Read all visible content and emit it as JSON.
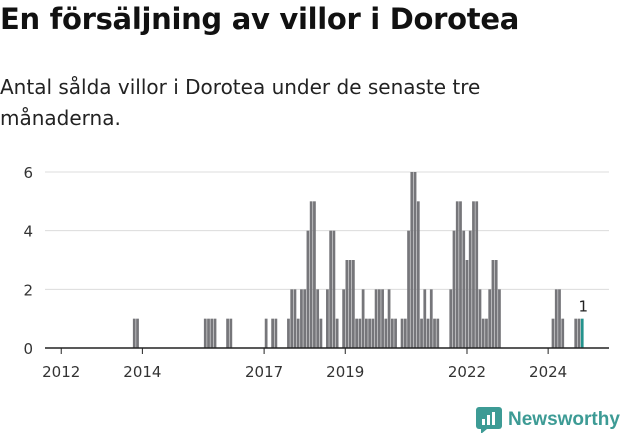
{
  "title": "En försäljning av villor i Dorotea",
  "subtitle": "Antal sålda villor i Dorotea under de senaste tre månaderna.",
  "brand": {
    "name": "Newsworthy",
    "color": "#3d9b95"
  },
  "chart_data": {
    "type": "bar",
    "title": "",
    "xlabel": "",
    "ylabel": "",
    "ylim": [
      0,
      6
    ],
    "yticks": [
      0,
      2,
      4,
      6
    ],
    "xlim": [
      2011.6,
      2025.5
    ],
    "xticks": [
      "2012",
      "2014",
      "2017",
      "2019",
      "2022",
      "2024"
    ],
    "grid": true,
    "bar_color": "#76767a",
    "highlight_color": "#24938d",
    "highlight_label": "1",
    "bars": [
      {
        "x": 2013.8,
        "y": 1
      },
      {
        "x": 2013.88,
        "y": 1
      },
      {
        "x": 2015.55,
        "y": 1
      },
      {
        "x": 2015.63,
        "y": 1
      },
      {
        "x": 2015.71,
        "y": 1
      },
      {
        "x": 2015.79,
        "y": 1
      },
      {
        "x": 2016.1,
        "y": 1
      },
      {
        "x": 2016.18,
        "y": 1
      },
      {
        "x": 2017.05,
        "y": 1
      },
      {
        "x": 2017.21,
        "y": 1
      },
      {
        "x": 2017.29,
        "y": 1
      },
      {
        "x": 2017.6,
        "y": 1
      },
      {
        "x": 2017.68,
        "y": 2
      },
      {
        "x": 2017.76,
        "y": 2
      },
      {
        "x": 2017.84,
        "y": 1
      },
      {
        "x": 2017.92,
        "y": 2
      },
      {
        "x": 2018.0,
        "y": 2
      },
      {
        "x": 2018.08,
        "y": 4
      },
      {
        "x": 2018.16,
        "y": 5
      },
      {
        "x": 2018.24,
        "y": 5
      },
      {
        "x": 2018.32,
        "y": 2
      },
      {
        "x": 2018.4,
        "y": 1
      },
      {
        "x": 2018.56,
        "y": 2
      },
      {
        "x": 2018.64,
        "y": 4
      },
      {
        "x": 2018.72,
        "y": 4
      },
      {
        "x": 2018.8,
        "y": 1
      },
      {
        "x": 2018.96,
        "y": 2
      },
      {
        "x": 2019.04,
        "y": 3
      },
      {
        "x": 2019.12,
        "y": 3
      },
      {
        "x": 2019.2,
        "y": 3
      },
      {
        "x": 2019.28,
        "y": 1
      },
      {
        "x": 2019.36,
        "y": 1
      },
      {
        "x": 2019.44,
        "y": 2
      },
      {
        "x": 2019.52,
        "y": 1
      },
      {
        "x": 2019.6,
        "y": 1
      },
      {
        "x": 2019.68,
        "y": 1
      },
      {
        "x": 2019.76,
        "y": 2
      },
      {
        "x": 2019.84,
        "y": 2
      },
      {
        "x": 2019.92,
        "y": 2
      },
      {
        "x": 2020.0,
        "y": 1
      },
      {
        "x": 2020.08,
        "y": 2
      },
      {
        "x": 2020.16,
        "y": 1
      },
      {
        "x": 2020.24,
        "y": 1
      },
      {
        "x": 2020.4,
        "y": 1
      },
      {
        "x": 2020.48,
        "y": 1
      },
      {
        "x": 2020.56,
        "y": 4
      },
      {
        "x": 2020.64,
        "y": 6
      },
      {
        "x": 2020.72,
        "y": 6
      },
      {
        "x": 2020.8,
        "y": 5
      },
      {
        "x": 2020.88,
        "y": 1
      },
      {
        "x": 2020.96,
        "y": 2
      },
      {
        "x": 2021.04,
        "y": 1
      },
      {
        "x": 2021.12,
        "y": 2
      },
      {
        "x": 2021.2,
        "y": 1
      },
      {
        "x": 2021.28,
        "y": 1
      },
      {
        "x": 2021.6,
        "y": 2
      },
      {
        "x": 2021.68,
        "y": 4
      },
      {
        "x": 2021.76,
        "y": 5
      },
      {
        "x": 2021.84,
        "y": 5
      },
      {
        "x": 2021.92,
        "y": 4
      },
      {
        "x": 2022.0,
        "y": 3
      },
      {
        "x": 2022.08,
        "y": 4
      },
      {
        "x": 2022.16,
        "y": 5
      },
      {
        "x": 2022.24,
        "y": 5
      },
      {
        "x": 2022.32,
        "y": 2
      },
      {
        "x": 2022.4,
        "y": 1
      },
      {
        "x": 2022.48,
        "y": 1
      },
      {
        "x": 2022.56,
        "y": 2
      },
      {
        "x": 2022.64,
        "y": 3
      },
      {
        "x": 2022.72,
        "y": 3
      },
      {
        "x": 2022.8,
        "y": 2
      },
      {
        "x": 2024.12,
        "y": 1
      },
      {
        "x": 2024.2,
        "y": 2
      },
      {
        "x": 2024.28,
        "y": 2
      },
      {
        "x": 2024.36,
        "y": 1
      },
      {
        "x": 2024.68,
        "y": 1
      },
      {
        "x": 2024.76,
        "y": 1
      },
      {
        "x": 2024.84,
        "y": 1,
        "highlight": true
      }
    ]
  }
}
